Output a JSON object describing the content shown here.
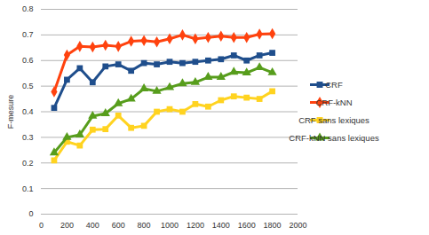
{
  "chart_data": {
    "type": "line",
    "ylabel": "F-mesure",
    "x": [
      100,
      200,
      300,
      400,
      500,
      600,
      700,
      800,
      900,
      1000,
      1100,
      1200,
      1300,
      1400,
      1500,
      1600,
      1700,
      1800
    ],
    "series": [
      {
        "name": "CRF",
        "color": "#1f4e8c",
        "marker": "square",
        "line_style": "solid",
        "values": [
          0.415,
          0.525,
          0.57,
          0.515,
          0.577,
          0.585,
          0.56,
          0.59,
          0.585,
          0.595,
          0.59,
          0.595,
          0.6,
          0.605,
          0.62,
          0.6,
          0.62,
          0.63
        ]
      },
      {
        "name": "CRF-kNN",
        "color": "#ff420e",
        "marker": "diamond",
        "line_style": "solid",
        "values": [
          0.478,
          0.622,
          0.655,
          0.653,
          0.66,
          0.655,
          0.675,
          0.678,
          0.673,
          0.685,
          0.7,
          0.685,
          0.69,
          0.695,
          0.69,
          0.69,
          0.703,
          0.705
        ]
      },
      {
        "name": "CRF sans lexiques",
        "color": "#ffd320",
        "marker": "square",
        "line_style": "solid",
        "values": [
          0.21,
          0.283,
          0.268,
          0.33,
          0.332,
          0.385,
          0.337,
          0.345,
          0.4,
          0.41,
          0.4,
          0.43,
          0.42,
          0.445,
          0.46,
          0.455,
          0.45,
          0.48
        ]
      },
      {
        "name": "CRF-kNN sans lexiques",
        "color": "#579d1c",
        "marker": "triangle",
        "line_style": "solid",
        "values": [
          0.24,
          0.3,
          0.31,
          0.383,
          0.393,
          0.432,
          0.45,
          0.49,
          0.48,
          0.495,
          0.51,
          0.515,
          0.535,
          0.535,
          0.555,
          0.552,
          0.573,
          0.553
        ]
      }
    ],
    "xlim": [
      0,
      2000
    ],
    "xticks": [
      0,
      200,
      400,
      600,
      800,
      1000,
      1200,
      1400,
      1600,
      1800,
      2000
    ],
    "ylim": [
      0,
      0.8
    ],
    "yticks": [
      0,
      0.1,
      0.2,
      0.3,
      0.4,
      0.5,
      0.6,
      0.7,
      0.8
    ],
    "grid": true,
    "legend": "right"
  }
}
